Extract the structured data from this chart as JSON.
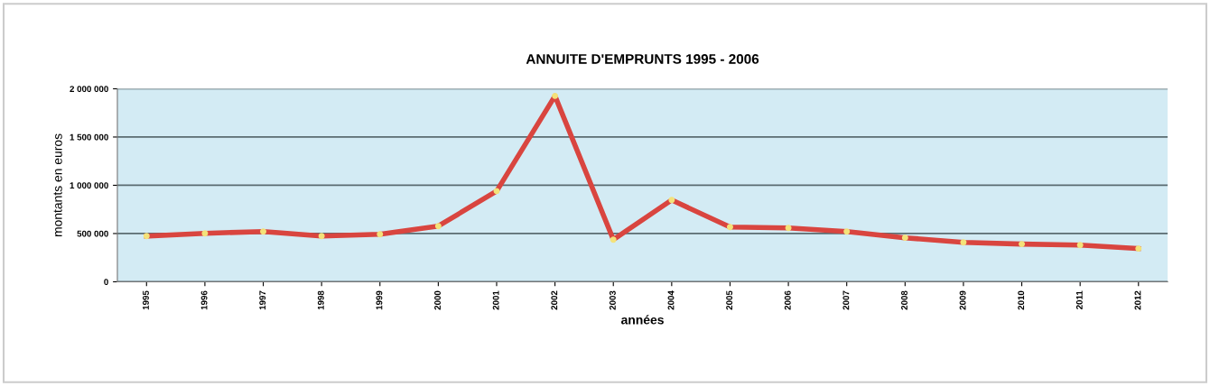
{
  "chart_data": {
    "type": "line",
    "title": "ANNUITE D'EMPRUNTS 1995 - 2006",
    "xlabel": "années",
    "ylabel": "montants en euros",
    "categories": [
      "1995",
      "1996",
      "1997",
      "1998",
      "1999",
      "2000",
      "2001",
      "2002",
      "2003",
      "2004",
      "2005",
      "2006",
      "2007",
      "2008",
      "2009",
      "2010",
      "2011",
      "2012"
    ],
    "series": [
      {
        "color": "#d9453f",
        "values": [
          474000,
          502000,
          521000,
          474000,
          493000,
          577000,
          940000,
          1926000,
          437000,
          847000,
          567000,
          558000,
          521000,
          456000,
          409000,
          391000,
          381000,
          344000
        ]
      }
    ],
    "ylim": [
      0,
      2000000
    ],
    "yticks": [
      {
        "value": 0,
        "label": "0"
      },
      {
        "value": 500000,
        "label": "500 000"
      },
      {
        "value": 1000000,
        "label": "1 000 000"
      },
      {
        "value": 1500000,
        "label": "1 500 000"
      },
      {
        "value": 2000000,
        "label": "2 000 000"
      }
    ],
    "grid": "y",
    "marker": "circle",
    "line_style": "solid",
    "legend": false
  }
}
